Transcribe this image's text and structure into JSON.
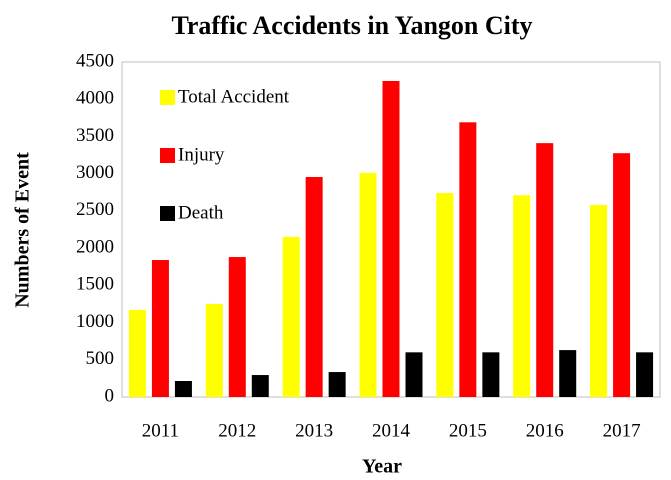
{
  "chart_data": {
    "type": "bar",
    "title": "Traffic Accidents in Yangon City",
    "x_label": "Year",
    "y_label": "Numbers of Event",
    "categories": [
      "2011",
      "2012",
      "2013",
      "2014",
      "2015",
      "2016",
      "2017"
    ],
    "series": [
      {
        "name": "Total Accident",
        "color": "#ffff00",
        "values": [
          1170,
          1250,
          2150,
          3010,
          2740,
          2710,
          2580
        ]
      },
      {
        "name": "Injury",
        "color": "#ff0000",
        "values": [
          1840,
          1880,
          2955,
          4245,
          3690,
          3410,
          3275
        ]
      },
      {
        "name": "Death",
        "color": "#000000",
        "values": [
          215,
          295,
          335,
          600,
          600,
          630,
          600
        ]
      }
    ],
    "ylim": [
      0,
      4500
    ],
    "yticks": [
      0,
      500,
      1000,
      1500,
      2000,
      2500,
      3000,
      3500,
      4000,
      4500
    ],
    "grid": false,
    "legend": "upper left"
  }
}
